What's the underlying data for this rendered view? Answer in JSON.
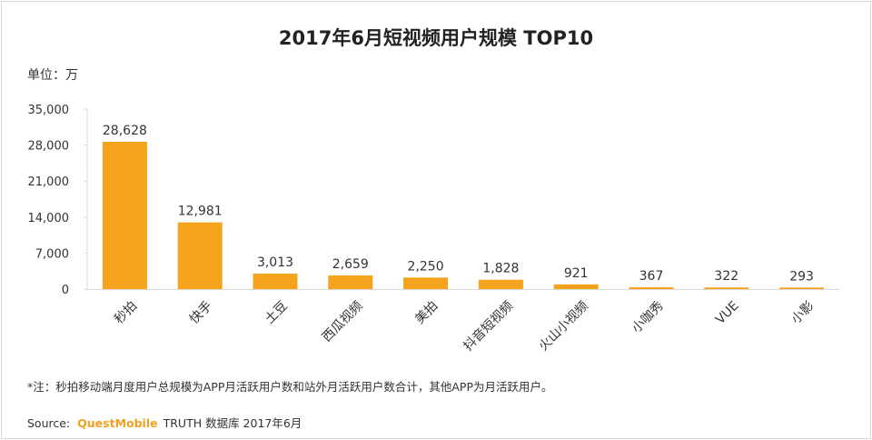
{
  "chart_data": {
    "type": "bar",
    "title": "2017年6月短视频用户规模 TOP10",
    "unit_label": "单位：万",
    "categories": [
      "秒拍",
      "快手",
      "土豆",
      "西瓜视频",
      "美拍",
      "抖音短视频",
      "火山小视频",
      "小咖秀",
      "VUE",
      "小影"
    ],
    "values": [
      28628,
      12981,
      3013,
      2659,
      2250,
      1828,
      921,
      367,
      322,
      293
    ],
    "value_labels": [
      "28,628",
      "12,981",
      "3,013",
      "2,659",
      "2,250",
      "1,828",
      "921",
      "367",
      "322",
      "293"
    ],
    "yticks": [
      0,
      7000,
      14000,
      21000,
      28000,
      35000
    ],
    "ytick_labels": [
      "0",
      "7,000",
      "14,000",
      "21,000",
      "28,000",
      "35,000"
    ],
    "ylim": [
      0,
      35000
    ],
    "xlabel": "",
    "ylabel": "",
    "bar_color": "#f5a21d"
  },
  "footnote": "*注：秒拍移动端月度用户总规模为APP月活跃用户数和站外月活跃用户数合计，其他APP为月活跃用户。",
  "source": {
    "label": "Source:",
    "brand": "QuestMobile",
    "text": "TRUTH 数据库 2017年6月"
  },
  "colors": {
    "brand": "#f0a01e",
    "bar": "#f5a21d"
  }
}
